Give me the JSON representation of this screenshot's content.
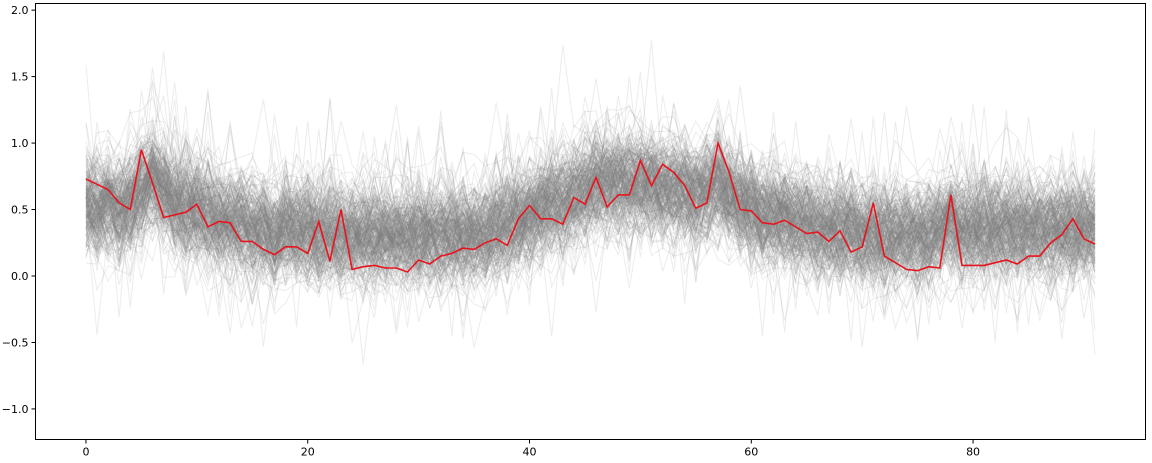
{
  "chart_data": {
    "type": "line",
    "title": "",
    "xlabel": "",
    "ylabel": "",
    "xlim": [
      -4.55,
      95.55
    ],
    "ylim": [
      -1.23,
      2.05
    ],
    "x_ticks": [
      0,
      20,
      40,
      60,
      80
    ],
    "x_tick_labels": [
      "0",
      "20",
      "40",
      "60",
      "80"
    ],
    "y_ticks": [
      -1.0,
      -0.5,
      0.0,
      0.5,
      1.0,
      1.5,
      2.0
    ],
    "y_tick_labels": [
      "−1.0",
      "−0.5",
      "0.0",
      "0.5",
      "1.0",
      "1.5",
      "2.0"
    ],
    "grid": false,
    "legend": "none",
    "background_series": {
      "count": 300,
      "color": "#808080",
      "opacity": 0.15,
      "x_range": [
        0,
        91
      ],
      "mean_profile": [
        0.55,
        0.5,
        0.55,
        0.5,
        0.55,
        0.65,
        0.75,
        0.65,
        0.55,
        0.5,
        0.5,
        0.45,
        0.4,
        0.4,
        0.4,
        0.35,
        0.35,
        0.3,
        0.35,
        0.35,
        0.35,
        0.3,
        0.35,
        0.3,
        0.3,
        0.3,
        0.3,
        0.3,
        0.3,
        0.3,
        0.3,
        0.3,
        0.3,
        0.3,
        0.3,
        0.3,
        0.3,
        0.35,
        0.4,
        0.4,
        0.45,
        0.5,
        0.55,
        0.55,
        0.6,
        0.65,
        0.7,
        0.7,
        0.7,
        0.7,
        0.7,
        0.7,
        0.65,
        0.65,
        0.65,
        0.6,
        0.65,
        0.7,
        0.6,
        0.55,
        0.5,
        0.45,
        0.45,
        0.45,
        0.4,
        0.4,
        0.35,
        0.35,
        0.35,
        0.35,
        0.3,
        0.3,
        0.3,
        0.3,
        0.3,
        0.3,
        0.3,
        0.35,
        0.4,
        0.35,
        0.35,
        0.35,
        0.35,
        0.35,
        0.35,
        0.35,
        0.35,
        0.35,
        0.35,
        0.35,
        0.35,
        0.35
      ]
    },
    "highlight_series": {
      "color": "#e8141d",
      "x": [
        0,
        1,
        2,
        3,
        4,
        5,
        6,
        7,
        8,
        9,
        10,
        11,
        12,
        13,
        14,
        15,
        16,
        17,
        18,
        19,
        20,
        21,
        22,
        23,
        24,
        25,
        26,
        27,
        28,
        29,
        30,
        31,
        32,
        33,
        34,
        35,
        36,
        37,
        38,
        39,
        40,
        41,
        42,
        43,
        44,
        45,
        46,
        47,
        48,
        49,
        50,
        51,
        52,
        53,
        54,
        55,
        56,
        57,
        58,
        59,
        60,
        61,
        62,
        63,
        64,
        65,
        66,
        67,
        68,
        69,
        70,
        71,
        72,
        73,
        74,
        75,
        76,
        77,
        78,
        79,
        80,
        81,
        82,
        83,
        84,
        85,
        86,
        87,
        88,
        89,
        90,
        91
      ],
      "values": [
        0.73,
        0.69,
        0.65,
        0.55,
        0.5,
        0.95,
        0.7,
        0.44,
        0.46,
        0.48,
        0.54,
        0.37,
        0.41,
        0.4,
        0.26,
        0.26,
        0.2,
        0.16,
        0.22,
        0.22,
        0.17,
        0.41,
        0.11,
        0.5,
        0.05,
        0.07,
        0.08,
        0.06,
        0.06,
        0.03,
        0.12,
        0.09,
        0.15,
        0.17,
        0.21,
        0.2,
        0.25,
        0.28,
        0.23,
        0.43,
        0.53,
        0.43,
        0.43,
        0.39,
        0.59,
        0.54,
        0.74,
        0.52,
        0.61,
        0.61,
        0.87,
        0.68,
        0.84,
        0.78,
        0.68,
        0.51,
        0.55,
        1.0,
        0.78,
        0.5,
        0.49,
        0.4,
        0.39,
        0.42,
        0.37,
        0.32,
        0.33,
        0.26,
        0.34,
        0.18,
        0.22,
        0.55,
        0.15,
        0.1,
        0.05,
        0.04,
        0.07,
        0.06,
        0.61,
        0.08,
        0.08,
        0.08,
        0.1,
        0.12,
        0.09,
        0.15,
        0.15,
        0.25,
        0.31,
        0.43,
        0.28,
        0.24
      ]
    }
  }
}
